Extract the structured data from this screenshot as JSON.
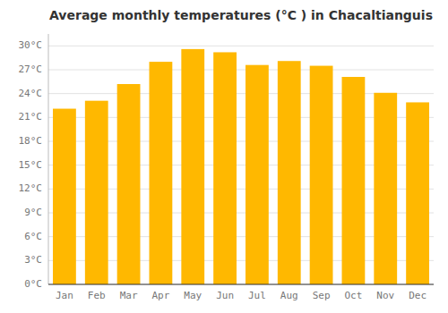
{
  "chart_data": {
    "type": "bar",
    "title": "Average monthly temperatures (°C ) in Chacaltianguis",
    "categories": [
      "Jan",
      "Feb",
      "Mar",
      "Apr",
      "May",
      "Jun",
      "Jul",
      "Aug",
      "Sep",
      "Oct",
      "Nov",
      "Dec"
    ],
    "values": [
      22.1,
      23.1,
      25.2,
      28.0,
      29.6,
      29.2,
      27.6,
      28.1,
      27.5,
      26.1,
      24.1,
      22.9
    ],
    "color": "#FFB800",
    "ylim": [
      0,
      31.5
    ],
    "yticks": [
      {
        "value": 0,
        "label": "0°C"
      },
      {
        "value": 3,
        "label": "3°C"
      },
      {
        "value": 6,
        "label": "6°C"
      },
      {
        "value": 9,
        "label": "9°C"
      },
      {
        "value": 12,
        "label": "12°C"
      },
      {
        "value": 15,
        "label": "15°C"
      },
      {
        "value": 18,
        "label": "18°C"
      },
      {
        "value": 21,
        "label": "21°C"
      },
      {
        "value": 24,
        "label": "24°C"
      },
      {
        "value": 27,
        "label": "27°C"
      },
      {
        "value": 30,
        "label": "30°C"
      }
    ],
    "grid": true
  }
}
